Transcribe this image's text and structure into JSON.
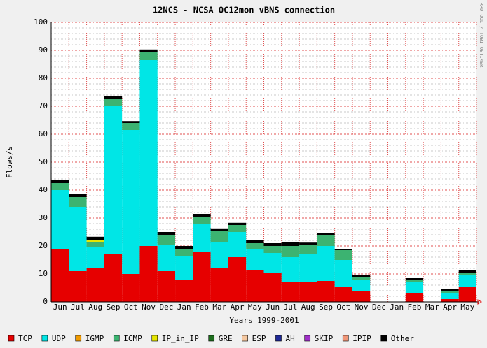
{
  "chart_data": {
    "type": "stacked_bar",
    "title": "12NCS - NCSA OC12mon vBNS connection",
    "y_label": "Flows/s",
    "x_label": "Years 1999-2001",
    "side_text": "RRDTOOL / TOBI OETIKER",
    "categories": [
      "Jun",
      "Jul",
      "Aug",
      "Sep",
      "Oct",
      "Nov",
      "Dec",
      "Jan",
      "Feb",
      "Mar",
      "Apr",
      "May",
      "Jun",
      "Jul",
      "Aug",
      "Sep",
      "Oct",
      "Nov",
      "Dec",
      "Jan",
      "Feb",
      "Mar",
      "Apr",
      "May"
    ],
    "series": [
      {
        "name": "TCP",
        "color": "#e60000",
        "values": [
          19,
          11,
          12,
          17,
          10,
          20,
          11,
          8,
          18,
          12,
          16,
          11.5,
          10.5,
          7,
          7,
          7.5,
          5.5,
          4,
          0,
          0,
          3,
          0,
          1,
          5.5
        ]
      },
      {
        "name": "UDP",
        "color": "#00e6e6",
        "values": [
          21,
          23,
          7.5,
          53,
          51.5,
          66.5,
          9.5,
          8.5,
          10,
          9.5,
          9,
          7.5,
          7,
          9,
          10,
          12.5,
          9.5,
          4,
          0,
          0,
          4,
          0,
          2,
          4
        ]
      },
      {
        "name": "IGMP",
        "color": "#f09a00",
        "values": [
          0,
          0,
          0,
          0,
          0,
          0,
          0,
          0,
          0,
          0,
          0,
          0,
          0,
          0,
          0,
          0,
          0,
          0,
          0,
          0,
          0,
          0,
          0,
          0
        ]
      },
      {
        "name": "ICMP",
        "color": "#3cb371",
        "values": [
          2.5,
          3.5,
          2,
          2.5,
          2.5,
          3,
          3.5,
          2.5,
          2.5,
          4,
          2.5,
          2,
          2.5,
          4,
          3.5,
          4,
          3.5,
          1,
          0,
          0,
          1,
          0,
          1,
          1
        ]
      },
      {
        "name": "IP_in_IP",
        "color": "#e6e600",
        "values": [
          0,
          0,
          0.5,
          0,
          0,
          0,
          0,
          0,
          0,
          0,
          0,
          0,
          0,
          0,
          0,
          0,
          0,
          0,
          0,
          0,
          0,
          0,
          0,
          0
        ]
      },
      {
        "name": "GRE",
        "color": "#1e6e1e",
        "values": [
          0,
          0,
          0,
          0,
          0,
          0,
          0,
          0,
          0,
          0,
          0,
          0,
          0,
          0,
          0,
          0,
          0,
          0,
          0,
          0,
          0,
          0,
          0,
          0
        ]
      },
      {
        "name": "ESP",
        "color": "#f5c8a0",
        "values": [
          0,
          0,
          0,
          0,
          0,
          0,
          0,
          0,
          0,
          0,
          0,
          0,
          0,
          0,
          0,
          0,
          0,
          0,
          0,
          0,
          0,
          0,
          0,
          0
        ]
      },
      {
        "name": "AH",
        "color": "#1e2896",
        "values": [
          0,
          0,
          0,
          0,
          0,
          0,
          0,
          0,
          0,
          0,
          0,
          0,
          0,
          0,
          0,
          0,
          0,
          0,
          0,
          0,
          0,
          0,
          0,
          0
        ]
      },
      {
        "name": "SKIP",
        "color": "#a030c8",
        "values": [
          0,
          0,
          0,
          0,
          0,
          0,
          0,
          0,
          0,
          0,
          0,
          0,
          0,
          0,
          0,
          0,
          0,
          0,
          0,
          0,
          0,
          0,
          0,
          0
        ]
      },
      {
        "name": "IPIP",
        "color": "#f09678",
        "values": [
          0,
          0,
          0,
          0,
          0,
          0,
          0,
          0,
          0,
          0,
          0,
          0,
          0,
          0,
          0,
          0,
          0,
          0,
          0,
          0,
          0,
          0,
          0,
          0
        ]
      },
      {
        "name": "Other",
        "color": "#000000",
        "values": [
          1,
          1,
          1.3,
          1,
          0.7,
          0.8,
          1,
          1,
          1,
          0.8,
          0.8,
          1,
          1,
          1.3,
          0.7,
          0.5,
          0.5,
          0.7,
          0,
          0,
          0.5,
          0,
          0.5,
          1
        ]
      }
    ],
    "ylim": [
      0,
      100
    ],
    "yticks": [
      0,
      10,
      20,
      30,
      40,
      50,
      60,
      70,
      80,
      90,
      100
    ],
    "grid": true
  }
}
